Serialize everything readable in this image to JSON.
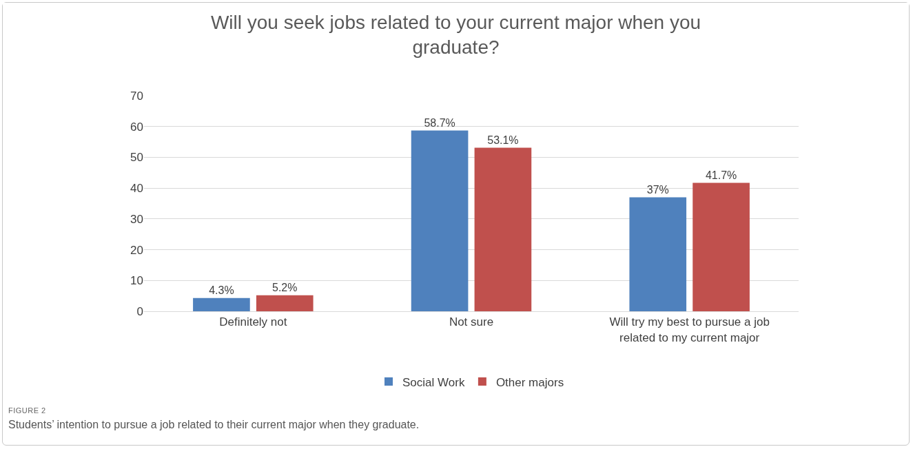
{
  "chart_data": {
    "type": "bar",
    "title": "Will you seek jobs related to your current major when you graduate?",
    "categories": [
      "Definitely not",
      "Not sure",
      "Will try my best to pursue a job related to my current major"
    ],
    "series": [
      {
        "name": "Social Work",
        "color": "#4f81bd",
        "values": [
          4.3,
          58.7,
          37
        ],
        "value_labels": [
          "4.3%",
          "58.7%",
          "37%"
        ]
      },
      {
        "name": "Other majors",
        "color": "#c0504d",
        "values": [
          5.2,
          53.1,
          41.7
        ],
        "value_labels": [
          "5.2%",
          "53.1%",
          "41.7%"
        ]
      }
    ],
    "ylim": [
      0,
      70
    ],
    "yticks": [
      0,
      10,
      20,
      30,
      40,
      50,
      60,
      70
    ],
    "grid": "y",
    "legend": "bottom",
    "annotations": [
      "FIGURE 2",
      "Students’ intention to pursue a job related to their current major when they graduate."
    ]
  }
}
